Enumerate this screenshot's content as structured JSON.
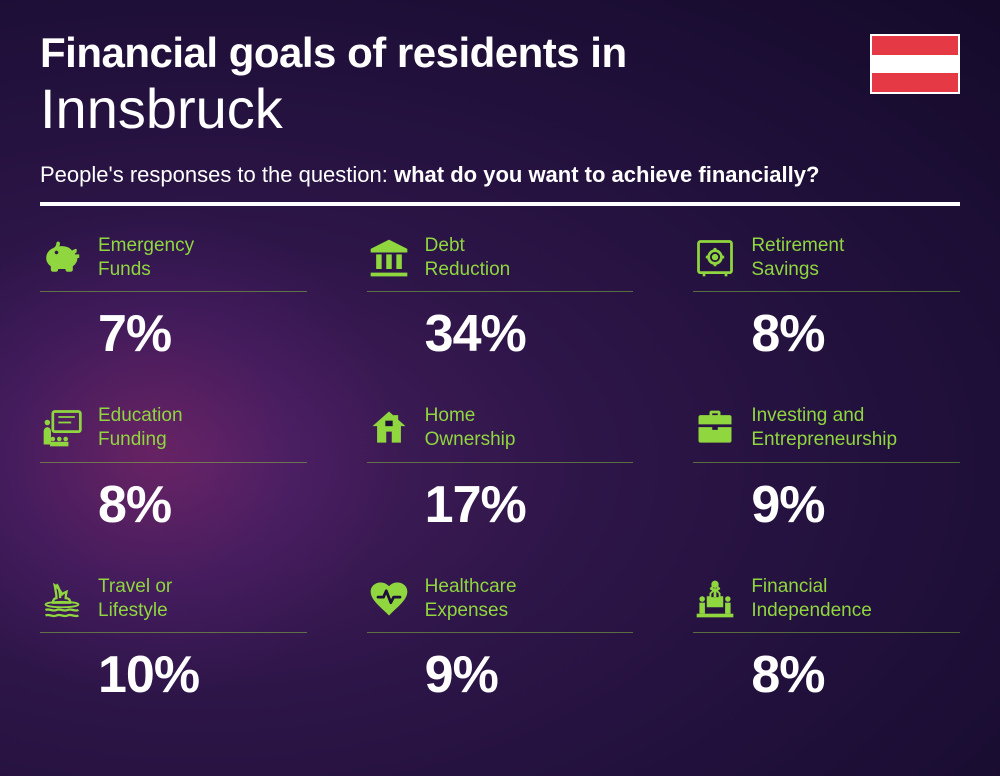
{
  "header": {
    "title_line1": "Financial goals of residents in",
    "title_line2": "Innsbruck",
    "subtitle_prefix": "People's responses to the question: ",
    "subtitle_bold": "what do you want to achieve financially?"
  },
  "flag": {
    "stripes": [
      "#e63946",
      "#ffffff",
      "#e63946"
    ]
  },
  "theme": {
    "accent_color": "#8fd63f",
    "text_color": "#ffffff",
    "label_fontsize": 19,
    "value_fontsize": 52,
    "title_fontsize": 42,
    "city_fontsize": 56,
    "subtitle_fontsize": 22
  },
  "items": [
    {
      "icon": "piggy-bank-icon",
      "label": "Emergency\nFunds",
      "value": "7%"
    },
    {
      "icon": "bank-icon",
      "label": "Debt\nReduction",
      "value": "34%"
    },
    {
      "icon": "safe-icon",
      "label": "Retirement\nSavings",
      "value": "8%"
    },
    {
      "icon": "education-icon",
      "label": "Education\nFunding",
      "value": "8%"
    },
    {
      "icon": "home-icon",
      "label": "Home\nOwnership",
      "value": "17%"
    },
    {
      "icon": "briefcase-icon",
      "label": "Investing and\nEntrepreneurship",
      "value": "9%"
    },
    {
      "icon": "travel-icon",
      "label": "Travel or\nLifestyle",
      "value": "10%"
    },
    {
      "icon": "healthcare-icon",
      "label": "Healthcare\nExpenses",
      "value": "9%"
    },
    {
      "icon": "independence-icon",
      "label": "Financial\nIndependence",
      "value": "8%"
    }
  ]
}
